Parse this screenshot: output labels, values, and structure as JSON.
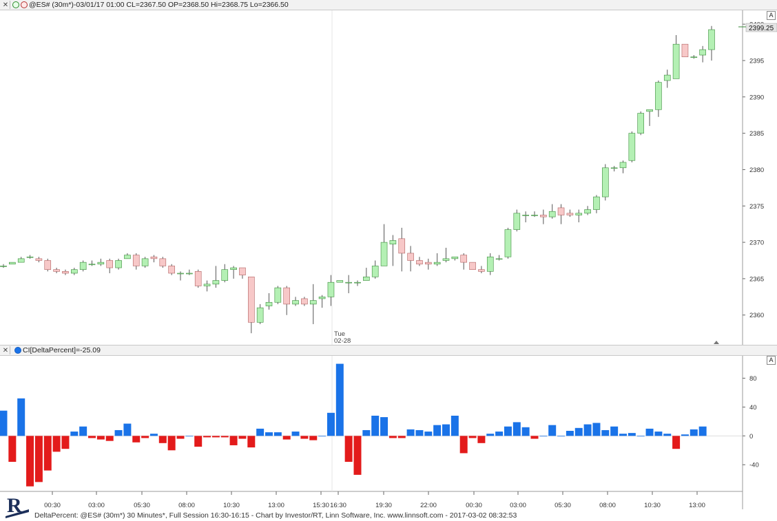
{
  "price_pane": {
    "header_text": "@ES# (30m*)-03/01/17 01:00 CL=2367.50 OP=2368.50 Hi=2368.75 Lo=2366.50",
    "close_label": "2399.25",
    "a_button": "A"
  },
  "indicator_pane": {
    "header_text": "CI[DeltaPercent]=-25.09",
    "a_button": "A"
  },
  "footer": {
    "text": "DeltaPercent: @ES# (30m*) 30 Minutes*, Full Session 16:30-16:15 - Chart by Investor/RT, Linn Software, Inc. www.linnsoft.com - 2017-03-02 08:32:53"
  },
  "logo": {
    "letter": "R"
  },
  "colors": {
    "up": "#b4f0b4",
    "down": "#f7c8c8",
    "up_border": "#3a8a3a",
    "down_border": "#b06060",
    "pos_bar": "#1a73e8",
    "neg_bar": "#e31b1b"
  },
  "chart_data": [
    {
      "type": "candlestick",
      "title": "",
      "y_ticks": [
        2360,
        2365,
        2370,
        2375,
        2380,
        2385,
        2390,
        2395,
        2400
      ],
      "ylim": [
        2356,
        2402
      ],
      "session_marker": {
        "label_line1": "Tue",
        "label_line2": "02-28"
      },
      "candles": [
        {
          "o": 2366.75,
          "h": 2367.0,
          "l": 2366.5,
          "c": 2366.75
        },
        {
          "o": 2367.0,
          "h": 2367.25,
          "l": 2367.0,
          "c": 2367.25
        },
        {
          "o": 2367.25,
          "h": 2368.0,
          "l": 2367.25,
          "c": 2367.75
        },
        {
          "o": 2368.0,
          "h": 2368.25,
          "l": 2367.75,
          "c": 2368.0
        },
        {
          "o": 2367.75,
          "h": 2368.0,
          "l": 2367.25,
          "c": 2367.5
        },
        {
          "o": 2367.5,
          "h": 2367.75,
          "l": 2366.0,
          "c": 2366.25
        },
        {
          "o": 2366.25,
          "h": 2366.5,
          "l": 2365.75,
          "c": 2366.0
        },
        {
          "o": 2366.0,
          "h": 2366.25,
          "l": 2365.5,
          "c": 2365.75
        },
        {
          "o": 2365.75,
          "h": 2366.5,
          "l": 2365.5,
          "c": 2366.25
        },
        {
          "o": 2366.25,
          "h": 2367.5,
          "l": 2366.0,
          "c": 2367.25
        },
        {
          "o": 2367.0,
          "h": 2367.5,
          "l": 2366.75,
          "c": 2367.0
        },
        {
          "o": 2367.0,
          "h": 2367.75,
          "l": 2366.75,
          "c": 2367.25
        },
        {
          "o": 2367.5,
          "h": 2367.75,
          "l": 2365.75,
          "c": 2366.5
        },
        {
          "o": 2366.5,
          "h": 2367.75,
          "l": 2366.25,
          "c": 2367.5
        },
        {
          "o": 2367.75,
          "h": 2368.5,
          "l": 2367.75,
          "c": 2368.25
        },
        {
          "o": 2368.25,
          "h": 2368.5,
          "l": 2366.25,
          "c": 2366.75
        },
        {
          "o": 2366.75,
          "h": 2368.0,
          "l": 2366.5,
          "c": 2367.75
        },
        {
          "o": 2368.0,
          "h": 2368.25,
          "l": 2367.25,
          "c": 2367.75
        },
        {
          "o": 2367.75,
          "h": 2368.0,
          "l": 2366.5,
          "c": 2366.75
        },
        {
          "o": 2366.75,
          "h": 2367.0,
          "l": 2365.5,
          "c": 2365.75
        },
        {
          "o": 2365.75,
          "h": 2366.0,
          "l": 2364.75,
          "c": 2365.75
        },
        {
          "o": 2365.75,
          "h": 2366.25,
          "l": 2365.5,
          "c": 2365.75
        },
        {
          "o": 2366.0,
          "h": 2366.25,
          "l": 2363.75,
          "c": 2364.0
        },
        {
          "o": 2364.0,
          "h": 2364.75,
          "l": 2363.25,
          "c": 2364.25
        },
        {
          "o": 2364.25,
          "h": 2366.75,
          "l": 2363.75,
          "c": 2364.75
        },
        {
          "o": 2364.75,
          "h": 2367.0,
          "l": 2364.5,
          "c": 2366.25
        },
        {
          "o": 2366.25,
          "h": 2366.75,
          "l": 2365.0,
          "c": 2366.5
        },
        {
          "o": 2366.5,
          "h": 2366.5,
          "l": 2365.0,
          "c": 2365.5
        },
        {
          "o": 2365.25,
          "h": 2365.25,
          "l": 2357.5,
          "c": 2359.0
        },
        {
          "o": 2359.0,
          "h": 2361.5,
          "l": 2358.75,
          "c": 2361.0
        },
        {
          "o": 2361.25,
          "h": 2363.0,
          "l": 2360.75,
          "c": 2361.75
        },
        {
          "o": 2361.75,
          "h": 2364.0,
          "l": 2361.5,
          "c": 2363.75
        },
        {
          "o": 2363.75,
          "h": 2364.0,
          "l": 2360.0,
          "c": 2361.5
        },
        {
          "o": 2361.5,
          "h": 2362.5,
          "l": 2361.25,
          "c": 2362.0
        },
        {
          "o": 2362.25,
          "h": 2362.5,
          "l": 2361.25,
          "c": 2361.5
        },
        {
          "o": 2361.5,
          "h": 2364.25,
          "l": 2358.75,
          "c": 2362.0
        },
        {
          "o": 2362.25,
          "h": 2362.75,
          "l": 2361.0,
          "c": 2362.5
        },
        {
          "o": 2362.5,
          "h": 2365.5,
          "l": 2361.25,
          "c": 2364.5
        },
        {
          "o": 2364.5,
          "h": 2364.75,
          "l": 2364.5,
          "c": 2364.75
        },
        {
          "o": 2364.5,
          "h": 2365.5,
          "l": 2363.0,
          "c": 2364.5
        },
        {
          "o": 2364.5,
          "h": 2364.75,
          "l": 2364.0,
          "c": 2364.5
        },
        {
          "o": 2364.75,
          "h": 2366.5,
          "l": 2364.75,
          "c": 2365.25
        },
        {
          "o": 2365.25,
          "h": 2367.5,
          "l": 2365.0,
          "c": 2366.75
        },
        {
          "o": 2366.75,
          "h": 2372.5,
          "l": 2366.75,
          "c": 2370.0
        },
        {
          "o": 2369.75,
          "h": 2371.0,
          "l": 2366.75,
          "c": 2370.25
        },
        {
          "o": 2370.5,
          "h": 2372.0,
          "l": 2366.0,
          "c": 2368.5
        },
        {
          "o": 2368.5,
          "h": 2369.5,
          "l": 2366.0,
          "c": 2367.5
        },
        {
          "o": 2367.5,
          "h": 2368.0,
          "l": 2366.75,
          "c": 2367.0
        },
        {
          "o": 2367.25,
          "h": 2367.75,
          "l": 2366.25,
          "c": 2367.0
        },
        {
          "o": 2367.0,
          "h": 2368.5,
          "l": 2366.75,
          "c": 2367.25
        },
        {
          "o": 2367.5,
          "h": 2369.25,
          "l": 2367.25,
          "c": 2367.75
        },
        {
          "o": 2367.75,
          "h": 2368.0,
          "l": 2367.5,
          "c": 2368.0
        },
        {
          "o": 2368.25,
          "h": 2368.5,
          "l": 2366.25,
          "c": 2367.25
        },
        {
          "o": 2367.25,
          "h": 2367.25,
          "l": 2366.25,
          "c": 2366.25
        },
        {
          "o": 2366.25,
          "h": 2366.75,
          "l": 2365.75,
          "c": 2366.0
        },
        {
          "o": 2366.0,
          "h": 2368.5,
          "l": 2365.5,
          "c": 2368.0
        },
        {
          "o": 2367.75,
          "h": 2368.25,
          "l": 2367.5,
          "c": 2367.75
        },
        {
          "o": 2368.0,
          "h": 2372.0,
          "l": 2367.75,
          "c": 2371.75
        },
        {
          "o": 2371.75,
          "h": 2374.5,
          "l": 2371.5,
          "c": 2374.0
        },
        {
          "o": 2373.75,
          "h": 2374.25,
          "l": 2372.75,
          "c": 2373.75
        },
        {
          "o": 2373.75,
          "h": 2374.25,
          "l": 2373.5,
          "c": 2373.75
        },
        {
          "o": 2373.75,
          "h": 2374.5,
          "l": 2372.5,
          "c": 2373.5
        },
        {
          "o": 2373.5,
          "h": 2375.25,
          "l": 2373.25,
          "c": 2374.25
        },
        {
          "o": 2374.75,
          "h": 2375.25,
          "l": 2372.5,
          "c": 2373.75
        },
        {
          "o": 2374.0,
          "h": 2374.5,
          "l": 2373.5,
          "c": 2373.75
        },
        {
          "o": 2373.75,
          "h": 2374.5,
          "l": 2372.75,
          "c": 2374.0
        },
        {
          "o": 2374.0,
          "h": 2375.0,
          "l": 2373.75,
          "c": 2374.5
        },
        {
          "o": 2374.5,
          "h": 2376.5,
          "l": 2374.0,
          "c": 2376.25
        },
        {
          "o": 2376.25,
          "h": 2380.75,
          "l": 2375.75,
          "c": 2380.25
        },
        {
          "o": 2380.25,
          "h": 2380.5,
          "l": 2379.75,
          "c": 2380.25
        },
        {
          "o": 2380.25,
          "h": 2381.25,
          "l": 2379.5,
          "c": 2381.0
        },
        {
          "o": 2381.25,
          "h": 2385.25,
          "l": 2381.0,
          "c": 2385.0
        },
        {
          "o": 2385.0,
          "h": 2388.0,
          "l": 2384.75,
          "c": 2387.75
        },
        {
          "o": 2388.0,
          "h": 2388.25,
          "l": 2386.0,
          "c": 2388.25
        },
        {
          "o": 2388.25,
          "h": 2392.25,
          "l": 2387.25,
          "c": 2392.0
        },
        {
          "o": 2392.25,
          "h": 2393.75,
          "l": 2391.25,
          "c": 2393.0
        },
        {
          "o": 2392.5,
          "h": 2398.5,
          "l": 2392.5,
          "c": 2397.25
        },
        {
          "o": 2397.25,
          "h": 2397.25,
          "l": 2395.5,
          "c": 2395.5
        },
        {
          "o": 2395.5,
          "h": 2395.75,
          "l": 2395.25,
          "c": 2395.5
        },
        {
          "o": 2395.75,
          "h": 2397.0,
          "l": 2394.75,
          "c": 2396.5
        },
        {
          "o": 2396.5,
          "h": 2399.75,
          "l": 2395.0,
          "c": 2399.25
        }
      ]
    },
    {
      "type": "bar",
      "title": "",
      "y_ticks": [
        -40,
        0,
        40,
        80
      ],
      "ylim": [
        -77,
        112
      ],
      "x_tick_labels": [
        "00:30",
        "03:00",
        "05:30",
        "08:00",
        "10:30",
        "13:00",
        "15:30",
        "16:30",
        "19:30",
        "22:00",
        "00:30",
        "03:00",
        "05:30",
        "08:00",
        "10:30",
        "13:00"
      ],
      "values": [
        35,
        -36,
        52,
        -70,
        -64,
        -48,
        -22,
        -18,
        6,
        13,
        -3,
        -5,
        -7,
        8,
        17,
        -9,
        -3,
        3,
        -10,
        -20,
        -4,
        0,
        -15,
        -2,
        -2,
        -2,
        -13,
        -4,
        -16,
        10,
        5,
        5,
        -5,
        6,
        -4,
        -6,
        0,
        32,
        100,
        -36,
        -54,
        8,
        28,
        26,
        -3,
        -3,
        9,
        8,
        6,
        15,
        16,
        28,
        -24,
        -3,
        -10,
        3,
        6,
        13,
        19,
        12,
        -4,
        0,
        15,
        0,
        7,
        11,
        16,
        18,
        8,
        13,
        3,
        4,
        0,
        10,
        6,
        3,
        -18,
        2,
        9,
        13
      ]
    }
  ]
}
